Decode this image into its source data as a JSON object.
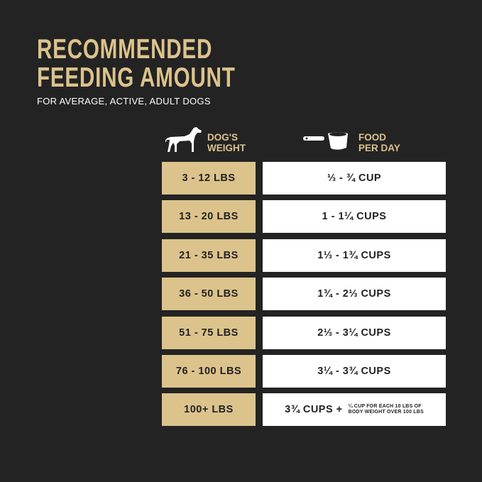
{
  "title_line1": "RECOMMENDED",
  "title_line2": "FEEDING AMOUNT",
  "subtitle": "FOR AVERAGE, ACTIVE, ADULT DOGS",
  "headers": {
    "weight_line1": "DOG'S",
    "weight_line2": "WEIGHT",
    "weight_icon": "dog-icon",
    "food_line1": "FOOD",
    "food_line2": "PER DAY",
    "food_icon": "measuring-cup-icon"
  },
  "colors": {
    "background": "#232323",
    "accent": "#dcc38c"
  },
  "rows": [
    {
      "weight": "3 - 12 LBS",
      "food": "⅓ - ¾ CUP"
    },
    {
      "weight": "13 - 20 LBS",
      "food": "1 - 1¼ CUPS"
    },
    {
      "weight": "21 - 35 LBS",
      "food": "1⅓ - 1¾ CUPS"
    },
    {
      "weight": "36 - 50 LBS",
      "food": "1¾ - 2⅓ CUPS"
    },
    {
      "weight": "51 - 75 LBS",
      "food": "2⅓ - 3¼ CUPS"
    },
    {
      "weight": "76 - 100 LBS",
      "food": "3¼ - 3¾ CUPS"
    },
    {
      "weight": "100+ LBS",
      "food": "3¾ CUPS +",
      "note_line1": "¼ CUP FOR EACH 10 LBS OF",
      "note_line2": "BODY WEIGHT OVER 100 LBS"
    }
  ]
}
